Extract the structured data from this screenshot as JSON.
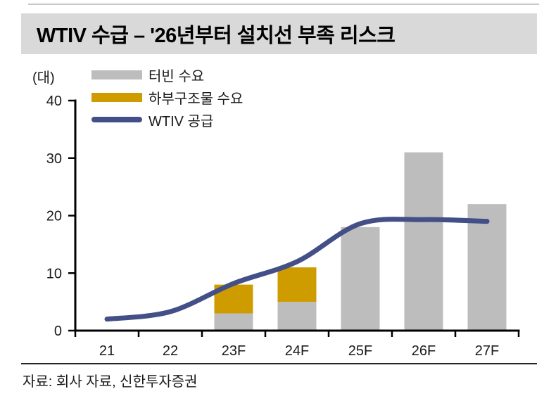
{
  "title": "WTIV 수급 – '26년부터 설치선 부족 리스크",
  "unit_label": "(대)",
  "source": "자료: 회사 자료, 신한투자증권",
  "legend": {
    "items": [
      {
        "label": "터빈 수요",
        "swatch": "bar",
        "color_key": "turbine"
      },
      {
        "label": "하부구조물 수요",
        "swatch": "bar",
        "color_key": "substructure"
      },
      {
        "label": "WTIV 공급",
        "swatch": "line",
        "color_key": "supply_line"
      }
    ]
  },
  "colors": {
    "turbine": "#BDBDBD",
    "substructure": "#CF9C00",
    "supply_line": "#434F87",
    "title_bg": "#D9D9D9",
    "axis": "#000000",
    "text": "#1A1A1A",
    "top_rule": "#C9C9C9",
    "bottom_rule": "#262626"
  },
  "chart_data": {
    "type": "bar",
    "title": "WTIV 수급 – '26년부터 설치선 부족 리스크",
    "categories": [
      "21",
      "22",
      "23F",
      "24F",
      "25F",
      "26F",
      "27F"
    ],
    "series": [
      {
        "name": "터빈 수요",
        "type": "bar",
        "color_key": "turbine",
        "values": [
          0,
          0,
          3,
          5,
          18,
          31,
          22
        ]
      },
      {
        "name": "하부구조물 수요",
        "type": "bar",
        "color_key": "substructure",
        "values": [
          0,
          0,
          5,
          6,
          0,
          0,
          0
        ]
      },
      {
        "name": "WTIV 공급",
        "type": "line",
        "color_key": "supply_line",
        "values": [
          2,
          3.3,
          8.2,
          12,
          18.6,
          19.3,
          19
        ]
      }
    ],
    "stacked": true,
    "xlabel": "",
    "ylabel": "(대)",
    "ylim": [
      0,
      40
    ],
    "yticks": [
      0,
      10,
      20,
      30,
      40
    ],
    "grid": false,
    "legend_position": "top-left"
  }
}
